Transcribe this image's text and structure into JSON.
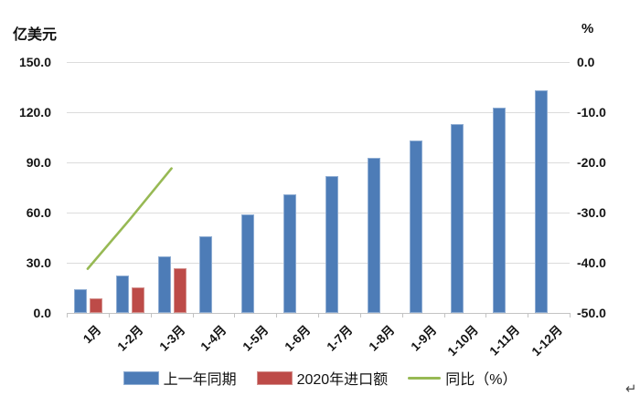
{
  "page": {
    "paragraph_mark": "↵"
  },
  "chart_data": {
    "type": "combo-bar-line",
    "title": "",
    "categories": [
      "1月",
      "1-2月",
      "1-3月",
      "1-4月",
      "1-5月",
      "1-6月",
      "1-7月",
      "1-8月",
      "1-9月",
      "1-10月",
      "1-11月",
      "1-12月"
    ],
    "left_axis": {
      "title": "亿美元",
      "min": 0,
      "max": 150,
      "ticks": [
        "150.0",
        "120.0",
        "90.0",
        "60.0",
        "30.0",
        "0.0"
      ]
    },
    "right_axis": {
      "title": "%",
      "min": -50,
      "max": 0,
      "ticks": [
        "0.0",
        "-10.0",
        "-20.0",
        "-30.0",
        "-40.0",
        "-50.0"
      ]
    },
    "grid": true,
    "legend_position": "bottom",
    "series": [
      {
        "id": "prev_year",
        "name": "上一年同期",
        "type": "bar",
        "axis": "left",
        "color": "#4d7cb7",
        "border_color": "#8fadd3",
        "values": [
          14,
          22.5,
          34,
          46,
          59,
          71,
          82,
          93,
          103,
          113,
          123,
          133
        ]
      },
      {
        "id": "imports_2020",
        "name": "2020年进口额",
        "type": "bar",
        "axis": "left",
        "color": "#bd4b48",
        "border_color": "#d3908d",
        "values": [
          8.5,
          15.5,
          27,
          null,
          null,
          null,
          null,
          null,
          null,
          null,
          null,
          null
        ]
      },
      {
        "id": "yoy",
        "name": "同比（%）",
        "type": "line",
        "axis": "right",
        "color": "#97b954",
        "values": [
          -41.2,
          -31.4,
          -21.2,
          null,
          null,
          null,
          null,
          null,
          null,
          null,
          null,
          null
        ]
      }
    ]
  }
}
